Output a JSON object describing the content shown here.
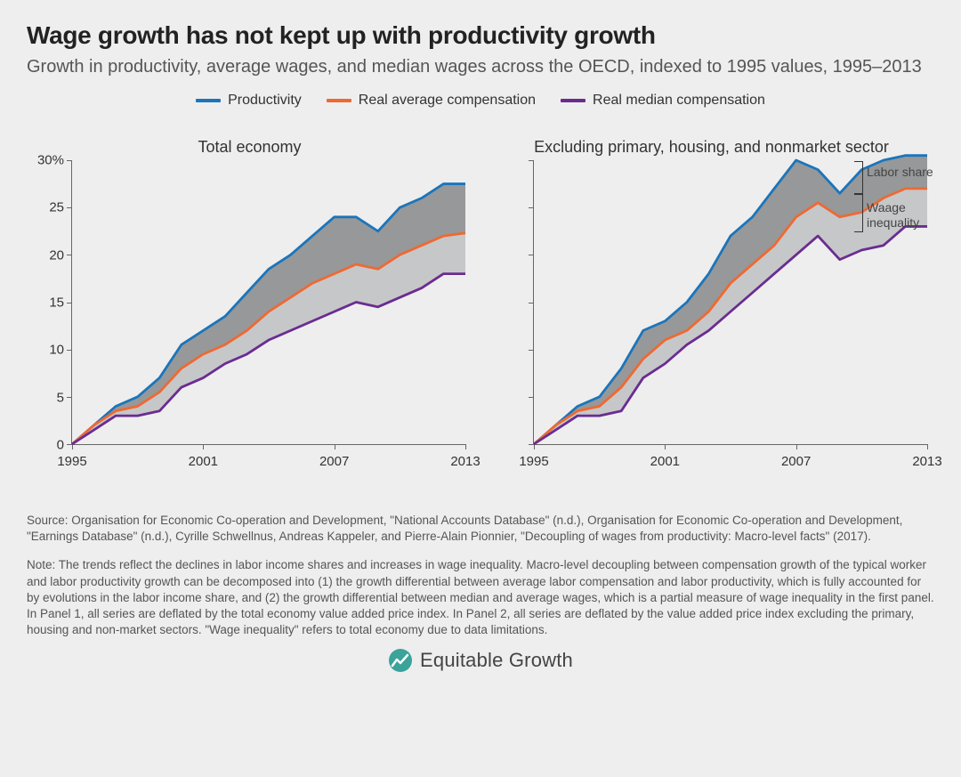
{
  "title": "Wage growth has not kept up with productivity growth",
  "subtitle": "Growth in productivity, average wages, and median wages across the OECD, indexed to 1995 values, 1995–2013",
  "legend": [
    {
      "label": "Productivity",
      "color": "#1b75bb"
    },
    {
      "label": "Real average compensation",
      "color": "#ed6a32"
    },
    {
      "label": "Real median compensation",
      "color": "#6a2c91"
    }
  ],
  "axis": {
    "y_min": 0,
    "y_max": 30,
    "y_ticks": [
      0,
      5,
      10,
      15,
      20,
      25,
      30
    ],
    "y_tick_labels": [
      "0",
      "5",
      "10",
      "15",
      "20",
      "25",
      "30%"
    ],
    "x_min": 1995,
    "x_max": 2013,
    "x_ticks": [
      1995,
      2001,
      2007,
      2013
    ],
    "x_tick_labels": [
      "1995",
      "2001",
      "2007",
      "2013"
    ]
  },
  "style": {
    "line_width": 2.8,
    "fill_upper": "#8d8e8f",
    "fill_lower": "#c1c2c4",
    "fill_opacity": 0.9,
    "background": "#eeeeee",
    "axis_color": "#666666"
  },
  "panels": [
    {
      "title": "Total economy",
      "series": {
        "productivity": [
          0,
          2,
          4,
          5,
          7,
          10.5,
          12,
          13.5,
          16,
          18.5,
          20,
          22,
          24,
          24,
          22.5,
          25,
          26,
          27.5,
          27.5
        ],
        "avg_comp": [
          0,
          2,
          3.5,
          4,
          5.5,
          8,
          9.5,
          10.5,
          12,
          14,
          15.5,
          17,
          18,
          19,
          18.5,
          20,
          21,
          22,
          22.3
        ],
        "med_comp": [
          0,
          1.5,
          3,
          3,
          3.5,
          6,
          7,
          8.5,
          9.5,
          11,
          12,
          13,
          14,
          15,
          14.5,
          15.5,
          16.5,
          18,
          18
        ]
      }
    },
    {
      "title": "Excluding primary, housing, and nonmarket sector",
      "series": {
        "productivity": [
          0,
          2,
          4,
          5,
          8,
          12,
          13,
          15,
          18,
          22,
          24,
          27,
          30,
          29,
          26.5,
          29,
          30,
          30.5,
          30.5
        ],
        "avg_comp": [
          0,
          2,
          3.5,
          4,
          6,
          9,
          11,
          12,
          14,
          17,
          19,
          21,
          24,
          25.5,
          24,
          24.5,
          26,
          27,
          27
        ],
        "med_comp": [
          0,
          1.5,
          3,
          3,
          3.5,
          7,
          8.5,
          10.5,
          12,
          14,
          16,
          18,
          20,
          22,
          19.5,
          20.5,
          21,
          23,
          23
        ]
      },
      "annotations": [
        {
          "label": "Labor share",
          "between": [
            "productivity",
            "avg_comp"
          ]
        },
        {
          "label": "Waage inequality",
          "between": [
            "avg_comp",
            "med_comp"
          ]
        }
      ]
    }
  ],
  "source": "Source: Organisation for Economic Co-operation and Development, \"National Accounts Database\" (n.d.), Organisation for Economic Co-operation and Development, \"Earnings Database\" (n.d.), Cyrille Schwellnus, Andreas Kappeler, and Pierre-Alain Pionnier, \"Decoupling of wages from productivity: Macro-level facts\" (2017).",
  "note": "Note: The trends reflect the declines in labor income shares and increases in wage inequality. Macro-level decoupling between compensation growth of the typical worker and labor productivity growth can be decomposed into (1) the growth differential between average labor compensation and labor productivity, which is fully accounted for by evolutions in the labor income share, and (2) the growth differential between median and average wages, which is a partial measure of wage inequality in the first panel. In Panel 1, all series are deflated by the total economy value added price index. In Panel 2, all series are deflated by the value added price index excluding the primary, housing and non-market sectors. \"Wage inequality\" refers to total economy due to data limitations.",
  "logo": {
    "text": "Equitable Growth",
    "color": "#3aa39a"
  }
}
